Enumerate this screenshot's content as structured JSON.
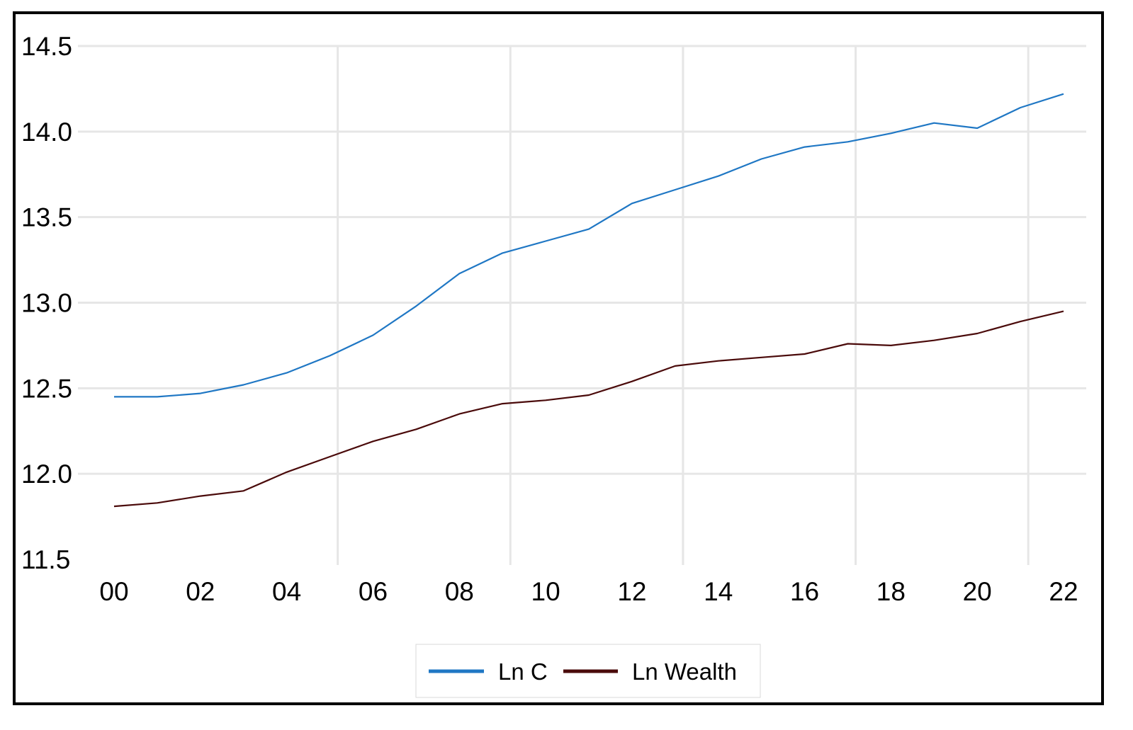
{
  "chart_data": {
    "type": "line",
    "title": "",
    "xlabel": "",
    "ylabel": "",
    "x": [
      0,
      1,
      2,
      3,
      4,
      5,
      6,
      7,
      8,
      9,
      10,
      11,
      12,
      13,
      14,
      15,
      16,
      17,
      18,
      19,
      20,
      21,
      22
    ],
    "x_tick_labels": [
      "00",
      "02",
      "04",
      "06",
      "08",
      "10",
      "12",
      "14",
      "16",
      "18",
      "20",
      "22"
    ],
    "x_tick_values": [
      0,
      2,
      4,
      6,
      8,
      10,
      12,
      14,
      16,
      18,
      20,
      22
    ],
    "xlim": [
      0,
      22
    ],
    "y_ticks": [
      "14.5",
      "14.0",
      "13.5",
      "13.0",
      "12.5",
      "12.0",
      "11.5"
    ],
    "y_tick_values": [
      14.5,
      14.0,
      13.5,
      13.0,
      12.5,
      12.0,
      11.5
    ],
    "ylim": [
      11.5,
      14.5
    ],
    "grid": true,
    "legend_position": "bottom",
    "series": [
      {
        "name": "Ln C",
        "color": "#1f77c4",
        "values": [
          12.45,
          12.45,
          12.47,
          12.52,
          12.59,
          12.69,
          12.81,
          12.98,
          13.17,
          13.29,
          13.36,
          13.43,
          13.58,
          13.66,
          13.74,
          13.84,
          13.91,
          13.94,
          13.99,
          14.05,
          14.02,
          14.14,
          14.22
        ]
      },
      {
        "name": "Ln Wealth",
        "color": "#4a0a0a",
        "values": [
          11.81,
          11.83,
          11.87,
          11.9,
          12.01,
          12.1,
          12.19,
          12.26,
          12.35,
          12.41,
          12.43,
          12.46,
          12.54,
          12.63,
          12.66,
          12.68,
          12.7,
          12.76,
          12.75,
          12.78,
          12.82,
          12.89,
          12.95
        ]
      }
    ]
  }
}
